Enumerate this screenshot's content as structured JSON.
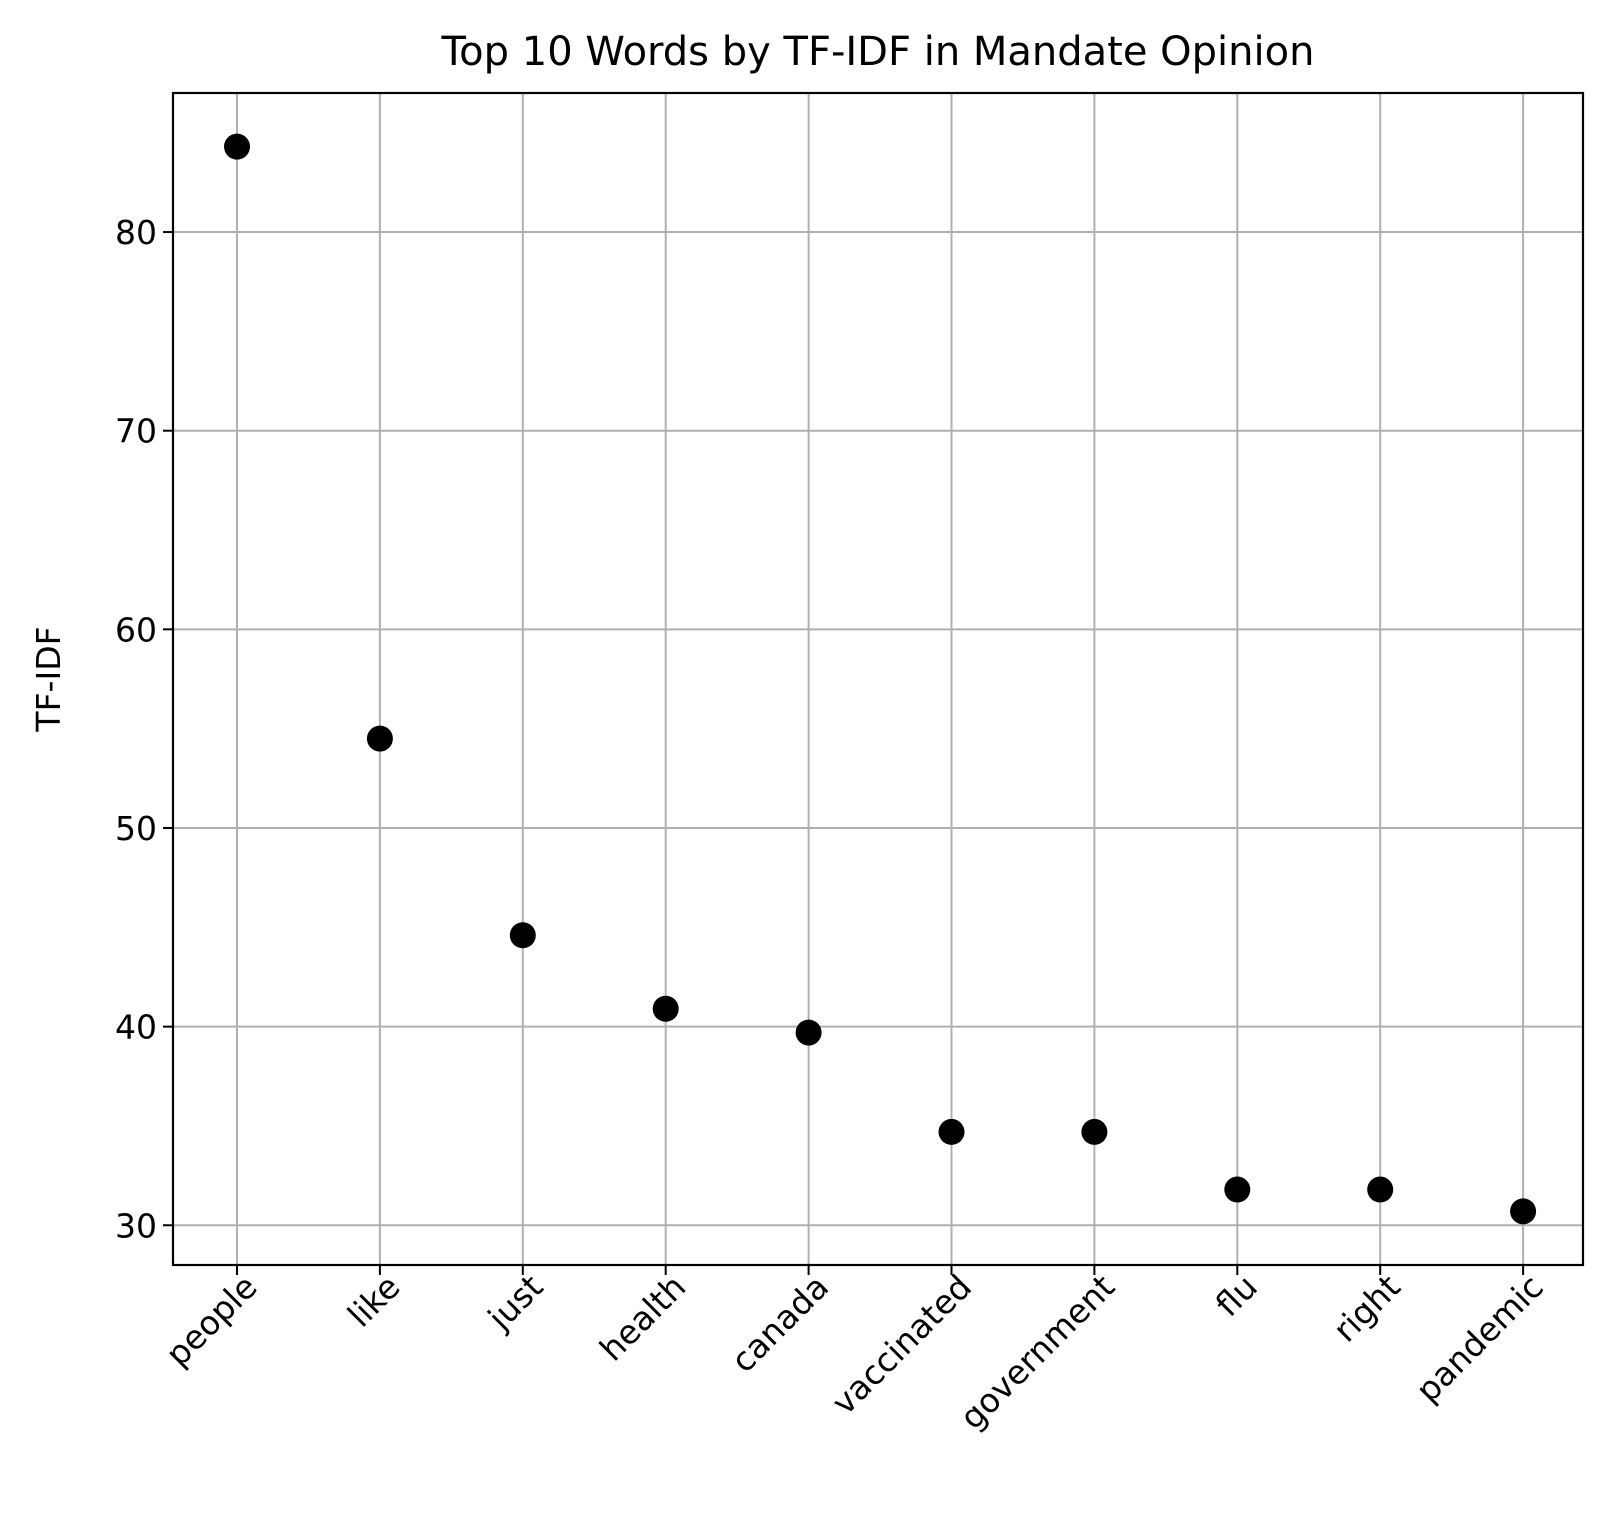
{
  "chart_data": {
    "type": "scatter",
    "title": "Top 10 Words by TF-IDF in Mandate Opinion",
    "xlabel": "",
    "ylabel": "TF-IDF",
    "categories": [
      "people",
      "like",
      "just",
      "health",
      "canada",
      "vaccinated",
      "government",
      "flu",
      "right",
      "pandemic"
    ],
    "values": [
      84.3,
      54.5,
      44.6,
      40.9,
      39.7,
      34.7,
      34.7,
      31.8,
      31.8,
      30.7
    ],
    "y_ticks": [
      30,
      40,
      50,
      60,
      70,
      80
    ],
    "ylim": [
      28.0,
      87.0
    ],
    "grid": true,
    "marker_color": "#000000",
    "grid_color": "#b0b0b0"
  }
}
